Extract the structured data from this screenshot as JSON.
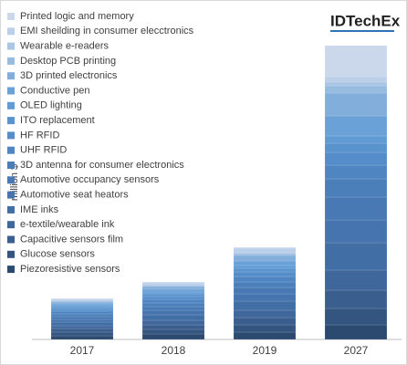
{
  "chart_data": {
    "type": "bar",
    "stacked": true,
    "brand": "IDTechEx",
    "y_label": "million $",
    "categories": [
      "2017",
      "2018",
      "2019",
      "2027"
    ],
    "ylim": [
      0,
      340
    ],
    "series": [
      {
        "name": "Piezoresistive sensors",
        "color": "#2c4a6f",
        "values": [
          4,
          6,
          8,
          16
        ]
      },
      {
        "name": "Glucose sensors",
        "color": "#33557f",
        "values": [
          4,
          5,
          8,
          18
        ]
      },
      {
        "name": "Capacitive sensors film",
        "color": "#3a5f8e",
        "values": [
          4,
          5,
          8,
          20
        ]
      },
      {
        "name": "e-textile/wearable ink",
        "color": "#3f679b",
        "values": [
          3,
          5,
          8,
          22
        ]
      },
      {
        "name": "IME inks",
        "color": "#426ea6",
        "values": [
          4,
          6,
          10,
          30
        ]
      },
      {
        "name": "Automotive seat heators",
        "color": "#4574ae",
        "values": [
          3,
          5,
          8,
          25
        ]
      },
      {
        "name": "Automotive occupancy sensors",
        "color": "#4879b4",
        "values": [
          3,
          4,
          7,
          25
        ]
      },
      {
        "name": "3D antenna for consumer electronics",
        "color": "#4b7fba",
        "values": [
          3,
          4,
          6,
          20
        ]
      },
      {
        "name": "UHF RFID",
        "color": "#4f86c2",
        "values": [
          3,
          4,
          6,
          15
        ]
      },
      {
        "name": "HF RFID",
        "color": "#548dc9",
        "values": [
          2,
          3,
          5,
          14
        ]
      },
      {
        "name": "ITO replacement",
        "color": "#5994cf",
        "values": [
          2,
          3,
          4,
          10
        ]
      },
      {
        "name": "OLED lighting",
        "color": "#609bd4",
        "values": [
          2,
          2,
          3,
          8
        ]
      },
      {
        "name": "Conductive pen",
        "color": "#6aa2d8",
        "values": [
          2,
          3,
          5,
          22
        ]
      },
      {
        "name": "3D printed electronics",
        "color": "#82aedb",
        "values": [
          2,
          3,
          6,
          25
        ]
      },
      {
        "name": "Desktop PCB printing",
        "color": "#98bbe0",
        "values": [
          1,
          1,
          2,
          8
        ]
      },
      {
        "name": "Wearable e-readers",
        "color": "#abc6e5",
        "values": [
          1,
          1,
          1,
          4
        ]
      },
      {
        "name": "EMI sheilding in consumer elecctronics",
        "color": "#bccfe8",
        "values": [
          1,
          2,
          5,
          6
        ]
      },
      {
        "name": "Printed logic and memory",
        "color": "#cbd8ec",
        "values": [
          1,
          1,
          1,
          34
        ]
      }
    ]
  }
}
